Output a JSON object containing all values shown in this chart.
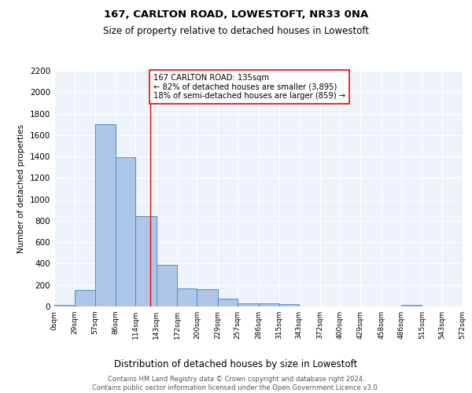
{
  "title1": "167, CARLTON ROAD, LOWESTOFT, NR33 0NA",
  "title2": "Size of property relative to detached houses in Lowestoft",
  "xlabel": "Distribution of detached houses by size in Lowestoft",
  "ylabel": "Number of detached properties",
  "bin_edges": [
    0,
    29,
    57,
    86,
    114,
    143,
    172,
    200,
    229,
    257,
    286,
    315,
    343,
    372,
    400,
    429,
    458,
    486,
    515,
    543,
    572
  ],
  "bar_heights": [
    15,
    155,
    1700,
    1390,
    840,
    390,
    170,
    165,
    70,
    30,
    30,
    20,
    0,
    0,
    0,
    0,
    0,
    15,
    0,
    0
  ],
  "bar_color": "#aec6e8",
  "bar_edge_color": "#4a90c4",
  "red_line_x": 135,
  "ylim": [
    0,
    2200
  ],
  "yticks": [
    0,
    200,
    400,
    600,
    800,
    1000,
    1200,
    1400,
    1600,
    1800,
    2000,
    2200
  ],
  "annotation_text": "167 CARLTON ROAD: 135sqm\n← 82% of detached houses are smaller (3,895)\n18% of semi-detached houses are larger (859) →",
  "background_color": "#eef2f9",
  "grid_color": "#ffffff",
  "footer_text": "Contains HM Land Registry data © Crown copyright and database right 2024.\nContains public sector information licensed under the Open Government Licence v3.0.",
  "tick_labels": [
    "0sqm",
    "29sqm",
    "57sqm",
    "86sqm",
    "114sqm",
    "143sqm",
    "172sqm",
    "200sqm",
    "229sqm",
    "257sqm",
    "286sqm",
    "315sqm",
    "343sqm",
    "372sqm",
    "400sqm",
    "429sqm",
    "458sqm",
    "486sqm",
    "515sqm",
    "543sqm",
    "572sqm"
  ]
}
